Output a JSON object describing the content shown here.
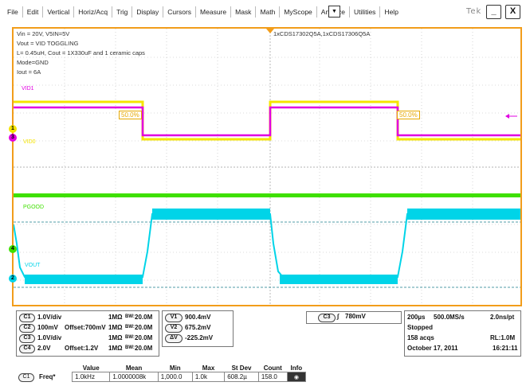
{
  "menu": {
    "items": [
      "File",
      "Edit",
      "Vertical",
      "Horiz/Acq",
      "Trig",
      "Display",
      "Cursors",
      "Measure",
      "Mask",
      "Math",
      "MyScope",
      "Analyze",
      "Utilities",
      "Help"
    ],
    "dropdown_icon": "▼",
    "brand": "Tek",
    "minimize": "_",
    "close": "X"
  },
  "annotations": {
    "line1": "Vin = 20V, V5IN=5V",
    "line2": "Vout = VID TOGGLING",
    "line3": "L= 0.45uH, Cout = 1X330uF and 1 ceramic caps",
    "line4": "Mode=GND",
    "line5": "Iout = 6A",
    "parts": "1xCDS17302Q5A,1xCDS17306Q5A"
  },
  "channels": {
    "vid1": "VID1",
    "vid0": "VID0",
    "pgood": "PGOOD",
    "vout": "VOUT",
    "pct_left": "50.0%",
    "pct_right": "50.0%",
    "m1": "1",
    "m2": "2",
    "m3": "3",
    "m4": "4"
  },
  "colors": {
    "ch1": "#f5e400",
    "ch2": "#00d4e8",
    "ch3": "#e100e1",
    "ch4": "#3fe000",
    "frame": "#f29d1b"
  },
  "vertical": [
    {
      "ch": "C1",
      "scale": "1.0V/div",
      "offset": "",
      "imp": "1MΩ",
      "bw_label": "BW:",
      "bw": "20.0M"
    },
    {
      "ch": "C2",
      "scale": "100mV",
      "offset": "Offset:700mV",
      "imp": "1MΩ",
      "bw_label": "BW:",
      "bw": "20.0M"
    },
    {
      "ch": "C3",
      "scale": "1.0V/div",
      "offset": "",
      "imp": "1MΩ",
      "bw_label": "BW:",
      "bw": "20.0M"
    },
    {
      "ch": "C4",
      "scale": "2.0V",
      "offset": "Offset:1.2V",
      "imp": "1MΩ",
      "bw_label": "BW:",
      "bw": "20.0M"
    }
  ],
  "cursors": [
    {
      "tag": "V1",
      "value": "900.4mV"
    },
    {
      "tag": "V2",
      "value": "675.2mV"
    },
    {
      "tag": "ΔV",
      "value": "-225.2mV"
    }
  ],
  "trigger": {
    "ch": "C3",
    "slope": "∫",
    "level": "780mV"
  },
  "horizontal": {
    "timebase": "200µs",
    "rate": "500.0MS/s",
    "res": "2.0ns/pt",
    "state": "Stopped",
    "acqs": "158 acqs",
    "rl": "RL:1.0M",
    "date": "October 17, 2011",
    "time": "16:21:11"
  },
  "measurements": {
    "headers": [
      "Value",
      "Mean",
      "Min",
      "Max",
      "St Dev",
      "Count",
      "Info"
    ],
    "row": {
      "ch": "C1",
      "name": "Freq*",
      "value": "1.0kHz",
      "mean": "1.0000008k",
      "min": "1,000.0",
      "max": "1.0k",
      "stdev": "608.2µ",
      "count": "158.0"
    }
  }
}
